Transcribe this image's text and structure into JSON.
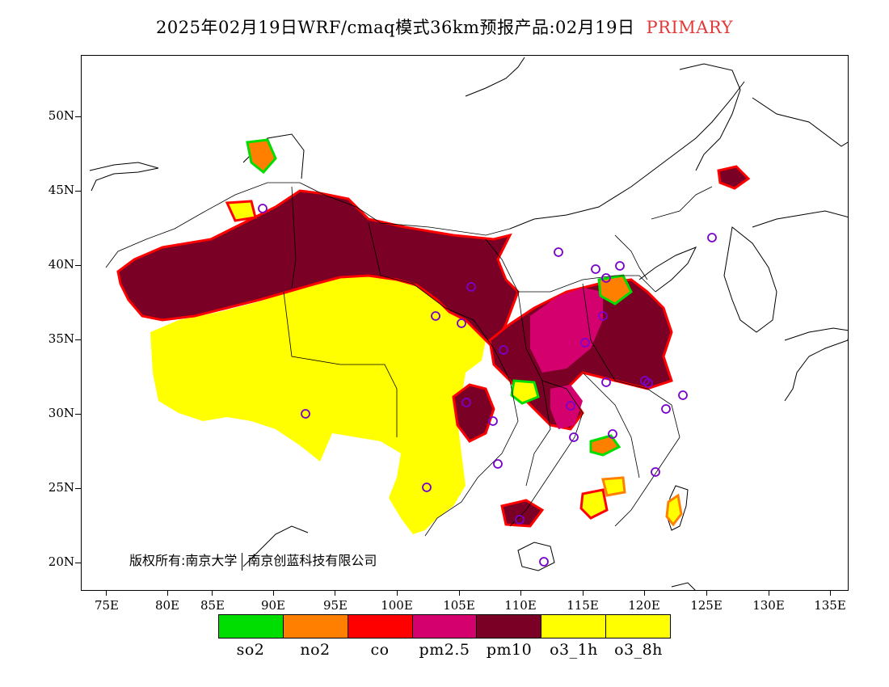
{
  "title": {
    "text": "2025年02月19日WRF/cmaq模式36km预报产品:02月19日",
    "tag": "PRIMARY",
    "tag_color": "#e03a3a"
  },
  "axes": {
    "lat_labels": [
      "50N",
      "45N",
      "40N",
      "35N",
      "30N",
      "25N",
      "20N"
    ],
    "lon_labels": [
      "75E",
      "80E",
      "85E",
      "90E",
      "95E",
      "100E",
      "105E",
      "110E",
      "115E",
      "120E",
      "125E",
      "130E",
      "135E"
    ]
  },
  "copyright": {
    "left": "版权所有:南京大学",
    "right": "南京创蓝科技有限公司"
  },
  "legend": [
    {
      "name": "so2",
      "color": "#00dd00"
    },
    {
      "name": "no2",
      "color": "#ff8000"
    },
    {
      "name": "co",
      "color": "#ff0000"
    },
    {
      "name": "pm2.5",
      "color": "#d4006e"
    },
    {
      "name": "pm10",
      "color": "#7a0026"
    },
    {
      "name": "o3_1h",
      "color": "#ffff00"
    },
    {
      "name": "o3_8h",
      "color": "#ffff00"
    }
  ],
  "stations": [
    "marker",
    "marker",
    "marker",
    "marker",
    "marker",
    "marker",
    "marker",
    "marker",
    "marker",
    "marker",
    "marker",
    "marker",
    "marker",
    "marker",
    "marker",
    "marker",
    "marker",
    "marker",
    "marker",
    "marker",
    "marker",
    "marker",
    "marker",
    "marker",
    "marker",
    "marker",
    "marker",
    "marker"
  ]
}
